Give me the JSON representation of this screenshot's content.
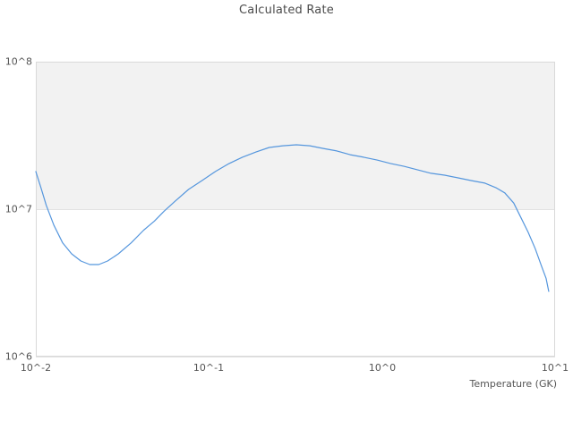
{
  "title": "Calculated Rate",
  "colors": {
    "line": "#5596dd",
    "band_fill": "#f2f2f2",
    "gridline": "#e3e3e3",
    "frame": "#d9d9d9",
    "title_text": "#4a4a4a",
    "tick_text": "#555555",
    "background": "#ffffff"
  },
  "chart_data": {
    "type": "line",
    "title": "Calculated Rate",
    "xlabel": "Temperature (GK)",
    "ylabel": "",
    "x_scale": "log",
    "y_scale": "log",
    "xlim": [
      0.01,
      10
    ],
    "ylim": [
      1000000,
      100000000
    ],
    "x_ticks": [
      0.01,
      0.1,
      1,
      10
    ],
    "x_tick_labels": [
      "10^-2",
      "10^-1",
      "10^0",
      "10^1"
    ],
    "y_ticks": [
      1000000,
      10000000,
      100000000
    ],
    "y_tick_labels": [
      "10^6",
      "10^7",
      "10^8"
    ],
    "grid": "decade lines only, no minor grid",
    "legend": "none",
    "band": {
      "from": 10000000,
      "to": 100000000
    },
    "series": [
      {
        "name": "Calculated Rate",
        "points": [
          [
            0.01,
            18000000.0
          ],
          [
            0.0107,
            14000000.0
          ],
          [
            0.0115,
            10600000.0
          ],
          [
            0.0127,
            7800000.0
          ],
          [
            0.0143,
            5900000.0
          ],
          [
            0.0161,
            4980000.0
          ],
          [
            0.0182,
            4450000.0
          ],
          [
            0.0205,
            4210000.0
          ],
          [
            0.0231,
            4210000.0
          ],
          [
            0.026,
            4450000.0
          ],
          [
            0.03,
            4980000.0
          ],
          [
            0.0355,
            5900000.0
          ],
          [
            0.042,
            7200000.0
          ],
          [
            0.0484,
            8300000.0
          ],
          [
            0.0552,
            9700000.0
          ],
          [
            0.0637,
            11300000.0
          ],
          [
            0.0762,
            13600000.0
          ],
          [
            0.0911,
            15600000.0
          ],
          [
            0.109,
            18000000.0
          ],
          [
            0.131,
            20400000.0
          ],
          [
            0.156,
            22500000.0
          ],
          [
            0.187,
            24400000.0
          ],
          [
            0.223,
            26200000.0
          ],
          [
            0.267,
            26900000.0
          ],
          [
            0.32,
            27300000.0
          ],
          [
            0.383,
            26900000.0
          ],
          [
            0.458,
            25800000.0
          ],
          [
            0.548,
            24800000.0
          ],
          [
            0.655,
            23400000.0
          ],
          [
            0.784,
            22500000.0
          ],
          [
            0.937,
            21500000.0
          ],
          [
            1.12,
            20400000.0
          ],
          [
            1.34,
            19500000.0
          ],
          [
            1.6,
            18500000.0
          ],
          [
            1.92,
            17500000.0
          ],
          [
            2.3,
            17000000.0
          ],
          [
            2.75,
            16300000.0
          ],
          [
            3.29,
            15600000.0
          ],
          [
            3.93,
            15000000.0
          ],
          [
            4.54,
            14000000.0
          ],
          [
            5.12,
            12900000.0
          ],
          [
            5.77,
            11000000.0
          ],
          [
            6.34,
            8800000.0
          ],
          [
            6.98,
            7000000.0
          ],
          [
            7.68,
            5400000.0
          ],
          [
            8.35,
            4100000.0
          ],
          [
            8.87,
            3400000.0
          ],
          [
            9.19,
            2770000.0
          ]
        ]
      }
    ]
  }
}
